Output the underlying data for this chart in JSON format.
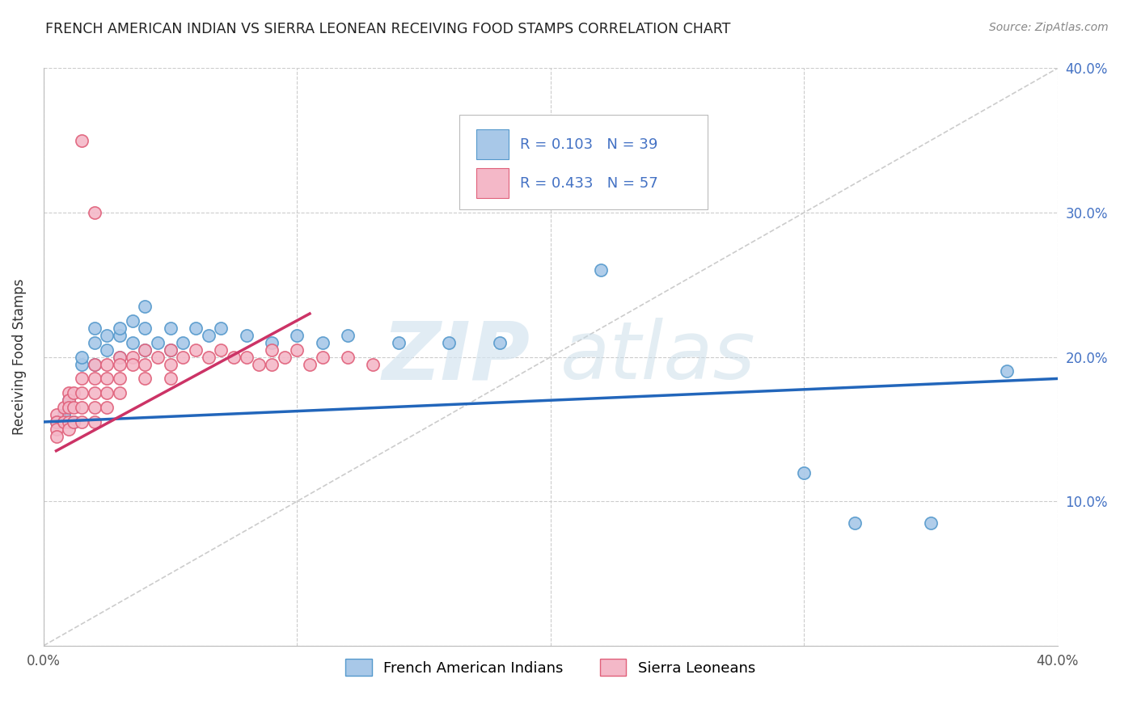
{
  "title": "FRENCH AMERICAN INDIAN VS SIERRA LEONEAN RECEIVING FOOD STAMPS CORRELATION CHART",
  "source": "Source: ZipAtlas.com",
  "ylabel": "Receiving Food Stamps",
  "xlim": [
    0.0,
    0.4
  ],
  "ylim": [
    0.0,
    0.4
  ],
  "x_ticks": [
    0.0,
    0.1,
    0.2,
    0.3,
    0.4
  ],
  "y_ticks": [
    0.0,
    0.1,
    0.2,
    0.3,
    0.4
  ],
  "x_tick_labels": [
    "0.0%",
    "",
    "",
    "",
    "40.0%"
  ],
  "y_tick_labels_right": [
    "",
    "10.0%",
    "20.0%",
    "30.0%",
    "40.0%"
  ],
  "color_blue": "#a8c8e8",
  "color_blue_edge": "#5599cc",
  "color_pink": "#f4b8c8",
  "color_pink_edge": "#e0607a",
  "color_blue_line": "#2266bb",
  "color_pink_line": "#cc3366",
  "watermark_zip": "ZIP",
  "watermark_atlas": "atlas",
  "blue_scatter_x": [
    0.005,
    0.008,
    0.01,
    0.012,
    0.015,
    0.015,
    0.02,
    0.02,
    0.02,
    0.025,
    0.025,
    0.03,
    0.03,
    0.03,
    0.035,
    0.035,
    0.04,
    0.04,
    0.04,
    0.045,
    0.05,
    0.05,
    0.055,
    0.06,
    0.065,
    0.07,
    0.08,
    0.09,
    0.1,
    0.11,
    0.12,
    0.14,
    0.16,
    0.18,
    0.22,
    0.3,
    0.32,
    0.35,
    0.38
  ],
  "blue_scatter_y": [
    0.155,
    0.16,
    0.17,
    0.155,
    0.195,
    0.2,
    0.195,
    0.21,
    0.22,
    0.205,
    0.215,
    0.2,
    0.215,
    0.22,
    0.21,
    0.225,
    0.205,
    0.22,
    0.235,
    0.21,
    0.205,
    0.22,
    0.21,
    0.22,
    0.215,
    0.22,
    0.215,
    0.21,
    0.215,
    0.21,
    0.215,
    0.21,
    0.21,
    0.21,
    0.26,
    0.12,
    0.085,
    0.085,
    0.19
  ],
  "pink_scatter_x": [
    0.005,
    0.005,
    0.005,
    0.005,
    0.008,
    0.008,
    0.01,
    0.01,
    0.01,
    0.01,
    0.01,
    0.012,
    0.012,
    0.012,
    0.015,
    0.015,
    0.015,
    0.015,
    0.02,
    0.02,
    0.02,
    0.02,
    0.02,
    0.025,
    0.025,
    0.025,
    0.025,
    0.03,
    0.03,
    0.03,
    0.03,
    0.035,
    0.035,
    0.04,
    0.04,
    0.04,
    0.045,
    0.05,
    0.05,
    0.05,
    0.055,
    0.06,
    0.065,
    0.07,
    0.075,
    0.08,
    0.085,
    0.09,
    0.09,
    0.095,
    0.1,
    0.105,
    0.11,
    0.12,
    0.13,
    0.015,
    0.02
  ],
  "pink_scatter_y": [
    0.16,
    0.155,
    0.15,
    0.145,
    0.165,
    0.155,
    0.175,
    0.17,
    0.165,
    0.155,
    0.15,
    0.175,
    0.165,
    0.155,
    0.185,
    0.175,
    0.165,
    0.155,
    0.195,
    0.185,
    0.175,
    0.165,
    0.155,
    0.195,
    0.185,
    0.175,
    0.165,
    0.2,
    0.195,
    0.185,
    0.175,
    0.2,
    0.195,
    0.205,
    0.195,
    0.185,
    0.2,
    0.205,
    0.195,
    0.185,
    0.2,
    0.205,
    0.2,
    0.205,
    0.2,
    0.2,
    0.195,
    0.205,
    0.195,
    0.2,
    0.205,
    0.195,
    0.2,
    0.2,
    0.195,
    0.35,
    0.3
  ],
  "blue_line_x": [
    0.0,
    0.4
  ],
  "blue_line_y": [
    0.155,
    0.185
  ],
  "pink_line_x": [
    0.005,
    0.105
  ],
  "pink_line_y": [
    0.135,
    0.23
  ],
  "diag_line_x": [
    0.0,
    0.4
  ],
  "diag_line_y": [
    0.0,
    0.4
  ]
}
